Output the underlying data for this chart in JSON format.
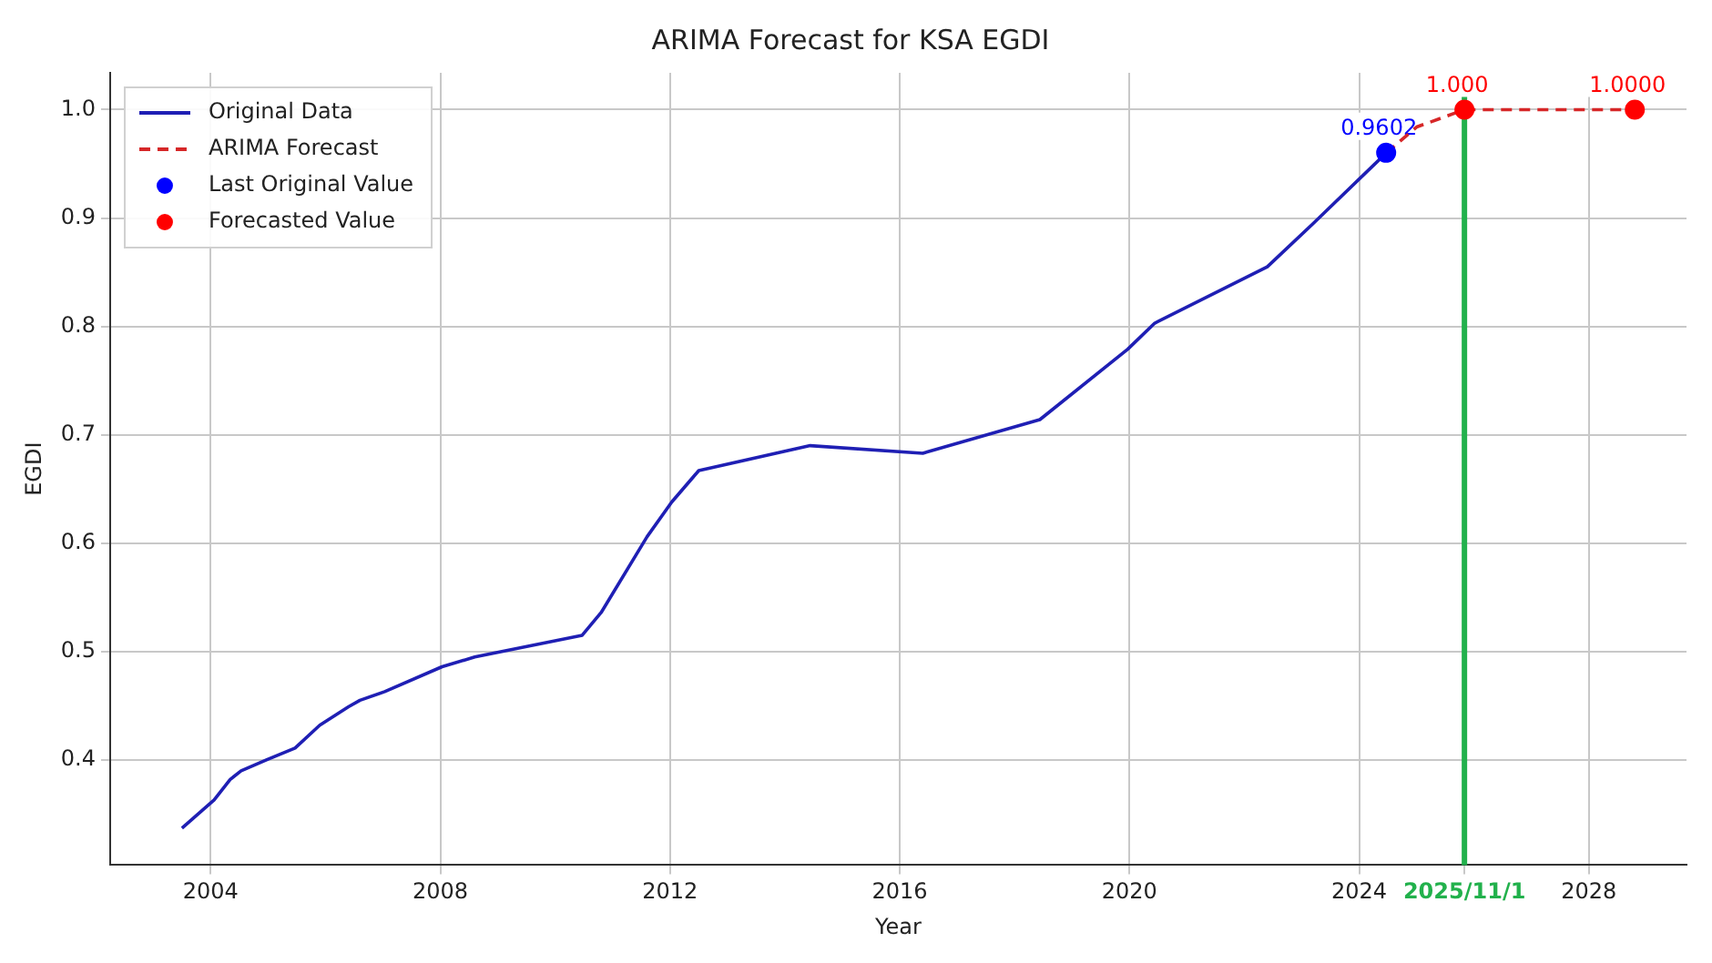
{
  "chart_data": {
    "type": "line",
    "title": "ARIMA Forecast for KSA EGDI",
    "xlabel": "Year",
    "ylabel": "EGDI",
    "series": [
      {
        "name": "Original Data",
        "color": "#1f1fb4",
        "line_style": "solid",
        "marker": "none",
        "x": [
          2003.5,
          2004.06,
          2004.34,
          2004.53,
          2004.97,
          2005.47,
          2005.9,
          2006.4,
          2006.6,
          2007.03,
          2008.03,
          2008.6,
          2010.47,
          2010.8,
          2011.6,
          2012.03,
          2012.5,
          2014.44,
          2016.4,
          2018.44,
          2019.97,
          2020.44,
          2022.4,
          2023.2,
          2024.47
        ],
        "values": [
          0.337,
          0.363,
          0.382,
          0.39,
          0.4,
          0.411,
          0.432,
          0.449,
          0.455,
          0.463,
          0.486,
          0.495,
          0.515,
          0.536,
          0.606,
          0.638,
          0.667,
          0.69,
          0.683,
          0.714,
          0.779,
          0.803,
          0.855,
          0.895,
          0.96
        ]
      },
      {
        "name": "ARIMA Forecast",
        "color": "#d62728",
        "line_style": "dashed",
        "marker": "none",
        "x": [
          2024.47,
          2025.0,
          2025.833,
          2028.8
        ],
        "values": [
          0.96,
          0.984,
          1.0,
          1.0
        ]
      },
      {
        "name": "Last Original Value",
        "type": "scatter",
        "color": "#0000ff",
        "marker": "circle",
        "x": [
          2024.47
        ],
        "values": [
          0.9602
        ],
        "value_labels": [
          "0.9602"
        ]
      },
      {
        "name": "Forecasted Value",
        "type": "scatter",
        "color": "#ff0000",
        "marker": "circle",
        "x": [
          2025.833,
          2028.8
        ],
        "values": [
          1.0,
          1.0
        ],
        "value_labels": [
          "1.000",
          "1.0000"
        ]
      }
    ],
    "ref_lines": [
      {
        "axis": "x",
        "value": 2025.833,
        "color": "#22b14c"
      }
    ],
    "xlim": [
      2002.25,
      2029.7
    ],
    "xticks": [
      2004,
      2008,
      2012,
      2016,
      2020,
      2024,
      {
        "value": 2025.833,
        "label": "2025/11/1"
      },
      2028
    ],
    "ylim": [
      0.303,
      1.034
    ],
    "yticks": [
      {
        "value": 0.4,
        "label": "0.4"
      },
      {
        "value": 0.5,
        "label": "0.5"
      },
      {
        "value": 0.6,
        "label": "0.6"
      },
      {
        "value": 0.7,
        "label": "0.7"
      },
      {
        "value": 0.8,
        "label": "0.8"
      },
      {
        "value": 0.9,
        "label": "0.9"
      },
      {
        "value": 1.0,
        "label": "1.0"
      }
    ],
    "grid": true,
    "legend": "top left"
  }
}
